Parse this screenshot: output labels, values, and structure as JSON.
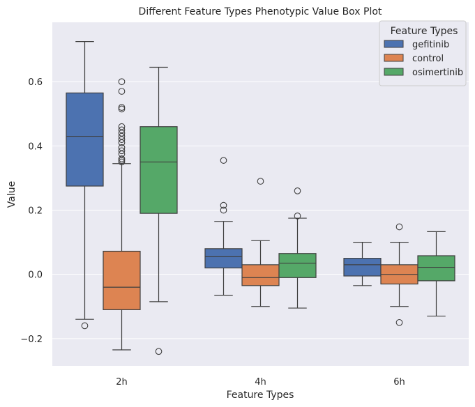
{
  "chart_data": {
    "type": "box",
    "title": "Different Feature Types Phenotypic Value Box Plot",
    "xlabel": "Feature Types",
    "ylabel": "Value",
    "categories": [
      "2h",
      "4h",
      "6h"
    ],
    "ylim": [
      -0.285,
      0.785
    ],
    "yticks": [
      -0.2,
      0.0,
      0.2,
      0.4,
      0.6
    ],
    "ytick_labels": [
      "−0.2",
      "0.0",
      "0.2",
      "0.4",
      "0.6"
    ],
    "grid": true,
    "legend": {
      "title": "Feature Types",
      "placement": "top-right"
    },
    "series": [
      {
        "name": "gefitinib",
        "color": "#4c72b0",
        "boxes": [
          {
            "category": "2h",
            "whisker_low": -0.14,
            "q1": 0.275,
            "median": 0.43,
            "q3": 0.565,
            "whisker_high": 0.725,
            "outliers": [
              -0.16
            ]
          },
          {
            "category": "4h",
            "whisker_low": -0.065,
            "q1": 0.02,
            "median": 0.055,
            "q3": 0.08,
            "whisker_high": 0.165,
            "outliers": [
              0.355,
              0.215,
              0.2
            ]
          },
          {
            "category": "6h",
            "whisker_low": -0.035,
            "q1": -0.005,
            "median": 0.03,
            "q3": 0.05,
            "whisker_high": 0.1,
            "outliers": []
          }
        ]
      },
      {
        "name": "control",
        "color": "#dd8452",
        "boxes": [
          {
            "category": "2h",
            "whisker_low": -0.235,
            "q1": -0.11,
            "median": -0.04,
            "q3": 0.072,
            "whisker_high": 0.345,
            "outliers": [
              0.6,
              0.57,
              0.52,
              0.515,
              0.46,
              0.45,
              0.44,
              0.43,
              0.42,
              0.41,
              0.395,
              0.385,
              0.375,
              0.36,
              0.355,
              0.35
            ]
          },
          {
            "category": "4h",
            "whisker_low": -0.1,
            "q1": -0.035,
            "median": -0.01,
            "q3": 0.03,
            "whisker_high": 0.105,
            "outliers": [
              0.29
            ]
          },
          {
            "category": "6h",
            "whisker_low": -0.1,
            "q1": -0.03,
            "median": 0.0,
            "q3": 0.03,
            "whisker_high": 0.1,
            "outliers": [
              0.148,
              -0.15
            ]
          }
        ]
      },
      {
        "name": "osimertinib",
        "color": "#55a868",
        "boxes": [
          {
            "category": "2h",
            "whisker_low": -0.085,
            "q1": 0.19,
            "median": 0.35,
            "q3": 0.46,
            "whisker_high": 0.645,
            "outliers": [
              -0.24
            ]
          },
          {
            "category": "4h",
            "whisker_low": -0.105,
            "q1": -0.01,
            "median": 0.035,
            "q3": 0.065,
            "whisker_high": 0.175,
            "outliers": [
              0.26,
              0.182
            ]
          },
          {
            "category": "6h",
            "whisker_low": -0.13,
            "q1": -0.02,
            "median": 0.022,
            "q3": 0.058,
            "whisker_high": 0.133,
            "outliers": []
          }
        ]
      }
    ]
  }
}
